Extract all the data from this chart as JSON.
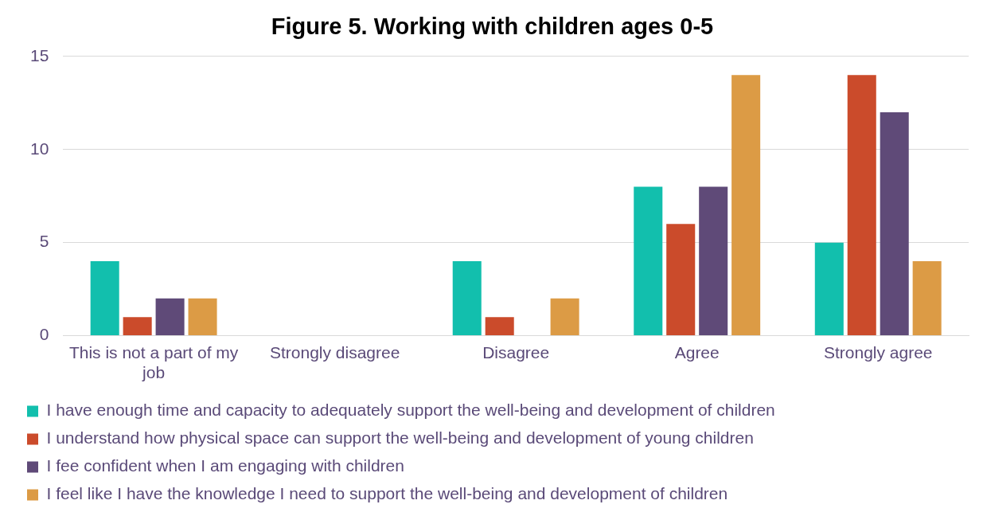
{
  "chart_data": {
    "type": "bar",
    "title": "Figure 5. Working with children ages 0-5",
    "categories": [
      "This is not a part of my job",
      "Strongly disagree",
      "Disagree",
      "Agree",
      "Strongly agree"
    ],
    "series": [
      {
        "name": "I have enough time and capacity to adequately support the well-being and development of children",
        "color": "#12bfad",
        "values": [
          4,
          0,
          4,
          8,
          5
        ]
      },
      {
        "name": "I understand how physical space can support the well-being and development of young children",
        "color": "#cb4b2b",
        "values": [
          1,
          0,
          1,
          6,
          14
        ]
      },
      {
        "name": "I fee confident when I am engaging with children",
        "color": "#5f4a78",
        "values": [
          2,
          0,
          0,
          8,
          12
        ]
      },
      {
        "name": "I feel like I have the knowledge I need to support the well-being and development of children",
        "color": "#dc9b45",
        "values": [
          2,
          0,
          2,
          14,
          4
        ]
      }
    ],
    "ylim": [
      0,
      15
    ],
    "yticks": [
      0,
      5,
      10,
      15
    ],
    "grid": "y",
    "legend": "bottom"
  }
}
